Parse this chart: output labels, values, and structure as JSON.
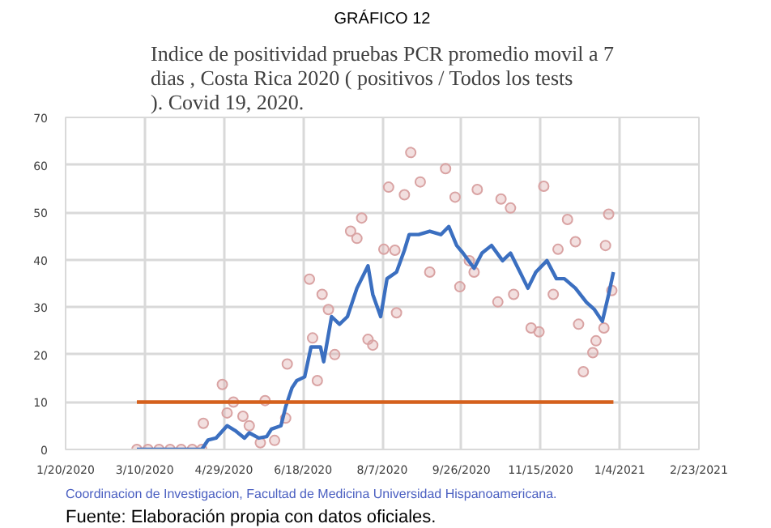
{
  "chart_data": {
    "type": "scatter",
    "title": "GRÁFICO 12",
    "subtitle": "Indice de positividad pruebas PCR promedio movil a 7 dias , Costa Rica 2020 ( positivos / Todos los tests ). Covid 19, 2020.",
    "annotations": [
      "Coordinacion de Investigacion, Facultad de Medicina Universidad Hispanoamericana.",
      "Fuente: Elaboración propia con datos oficiales."
    ],
    "xlim": [
      "2020-01-20",
      "2021-02-23"
    ],
    "xticks": [
      {
        "value": "2020-01-20",
        "label": "1/20/2020"
      },
      {
        "value": "2020-03-10",
        "label": "3/10/2020"
      },
      {
        "value": "2020-04-29",
        "label": "4/29/2020"
      },
      {
        "value": "2020-06-18",
        "label": "6/18/2020"
      },
      {
        "value": "2020-08-07",
        "label": "8/7/2020"
      },
      {
        "value": "2020-09-26",
        "label": "9/26/2020"
      },
      {
        "value": "2020-11-15",
        "label": "11/15/2020"
      },
      {
        "value": "2021-01-04",
        "label": "1/4/2021"
      },
      {
        "value": "2021-02-23",
        "label": "2/23/2021"
      }
    ],
    "ylim": [
      0,
      70
    ],
    "yticks": [
      0,
      10,
      20,
      30,
      40,
      50,
      60,
      70
    ],
    "grid": true,
    "series": [
      {
        "marker": "circle",
        "color": "#d9a3a3",
        "x": [
          "2020-03-05",
          "2020-03-12",
          "2020-03-19",
          "2020-03-26",
          "2020-04-02",
          "2020-04-09",
          "2020-04-15",
          "2020-04-16",
          "2020-04-28",
          "2020-05-01",
          "2020-05-05",
          "2020-05-11",
          "2020-05-15",
          "2020-05-22",
          "2020-05-25",
          "2020-05-31",
          "2020-06-07",
          "2020-06-08",
          "2020-06-22",
          "2020-06-24",
          "2020-06-27",
          "2020-06-30",
          "2020-07-04",
          "2020-07-08",
          "2020-07-18",
          "2020-07-22",
          "2020-07-25",
          "2020-07-29",
          "2020-08-01",
          "2020-08-08",
          "2020-08-11",
          "2020-08-15",
          "2020-08-16",
          "2020-08-21",
          "2020-08-25",
          "2020-08-31",
          "2020-09-06",
          "2020-09-16",
          "2020-09-22",
          "2020-09-25",
          "2020-10-01",
          "2020-10-04",
          "2020-10-06",
          "2020-10-19",
          "2020-10-21",
          "2020-10-27",
          "2020-10-29",
          "2020-11-09",
          "2020-11-14",
          "2020-11-17",
          "2020-11-23",
          "2020-11-26",
          "2020-12-02",
          "2020-12-07",
          "2020-12-09",
          "2020-12-12",
          "2020-12-18",
          "2020-12-20",
          "2020-12-25",
          "2020-12-26",
          "2020-12-28",
          "2020-12-30"
        ],
        "values": [
          0,
          0,
          0,
          0,
          0,
          0,
          0,
          5.5,
          13.7,
          7.7,
          10,
          7,
          5,
          1.4,
          10.3,
          1.9,
          6.6,
          18,
          35.9,
          23.5,
          14.5,
          32.7,
          29.5,
          20,
          46,
          44.5,
          48.8,
          23.2,
          22,
          42.2,
          55.3,
          42,
          28.8,
          53.7,
          62.6,
          56.4,
          37.4,
          59.2,
          53.2,
          34.3,
          39.8,
          37.4,
          54.8,
          31.1,
          52.8,
          50.9,
          32.7,
          25.6,
          24.8,
          55.5,
          32.7,
          42.2,
          48.5,
          43.8,
          26.4,
          16.4,
          20.4,
          22.9,
          25.6,
          43,
          49.6,
          33.5
        ]
      },
      {
        "type": "line",
        "marker": "none",
        "color": "#3b6fc0",
        "x": [
          "2020-03-05",
          "2020-04-15",
          "2020-04-19",
          "2020-04-24",
          "2020-05-01",
          "2020-05-06",
          "2020-05-12",
          "2020-05-15",
          "2020-05-21",
          "2020-05-26",
          "2020-05-29",
          "2020-06-04",
          "2020-06-07",
          "2020-06-11",
          "2020-06-14",
          "2020-06-19",
          "2020-06-23",
          "2020-06-29",
          "2020-07-01",
          "2020-07-06",
          "2020-07-11",
          "2020-07-16",
          "2020-07-22",
          "2020-07-29",
          "2020-08-01",
          "2020-08-06",
          "2020-08-10",
          "2020-08-16",
          "2020-08-21",
          "2020-08-24",
          "2020-08-30",
          "2020-09-06",
          "2020-09-13",
          "2020-09-18",
          "2020-09-23",
          "2020-09-27",
          "2020-10-04",
          "2020-10-09",
          "2020-10-15",
          "2020-10-22",
          "2020-10-27",
          "2020-11-02",
          "2020-11-07",
          "2020-11-12",
          "2020-11-19",
          "2020-11-25",
          "2020-11-30",
          "2020-12-07",
          "2020-12-14",
          "2020-12-19",
          "2020-12-24",
          "2020-12-28",
          "2020-12-31"
        ],
        "values": [
          0,
          0,
          2,
          2.4,
          5,
          4,
          2.4,
          3.5,
          2.4,
          2.7,
          4.3,
          5,
          9,
          13,
          14.5,
          15.3,
          21.6,
          21.6,
          18.5,
          28,
          26.4,
          28,
          34,
          38.7,
          32.7,
          28,
          36,
          37.4,
          42,
          45.3,
          45.3,
          46,
          45.3,
          47,
          43,
          41.4,
          38.2,
          41.4,
          43,
          39.8,
          41.4,
          37.4,
          34,
          37.4,
          39.8,
          36,
          36,
          34,
          31,
          29.5,
          27,
          32.7,
          37.4
        ]
      },
      {
        "type": "line",
        "marker": "none",
        "color": "#d5601c",
        "x": [
          "2020-03-05",
          "2020-12-31"
        ],
        "values": [
          10,
          10
        ]
      }
    ]
  }
}
